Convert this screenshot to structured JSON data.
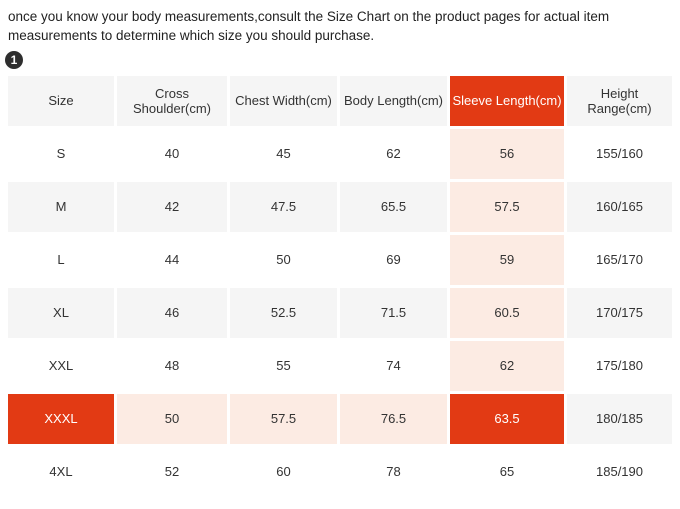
{
  "intro": {
    "text": "once you know your body measurements,consult the Size Chart on the product pages for actual item measurements to determine which size you should purchase.",
    "step_badge": "1"
  },
  "colors": {
    "accent": "#e23a14",
    "accent-light": "#fcebe3",
    "stripe": "#f5f5f5",
    "text-color": "#333333",
    "badge-bg": "#2e2e2e"
  },
  "size_chart": {
    "columns": [
      "Size",
      "Cross Shoulder(cm)",
      "Chest Width(cm)",
      "Body Length(cm)",
      "Sleeve Length(cm)",
      "Height Range(cm)"
    ],
    "highlighted_column": "Sleeve Length(cm)",
    "highlighted_row": "XXXL",
    "rows": [
      [
        "S",
        "40",
        "45",
        "62",
        "56",
        "155/160"
      ],
      [
        "M",
        "42",
        "47.5",
        "65.5",
        "57.5",
        "160/165"
      ],
      [
        "L",
        "44",
        "50",
        "69",
        "59",
        "165/170"
      ],
      [
        "XL",
        "46",
        "52.5",
        "71.5",
        "60.5",
        "170/175"
      ],
      [
        "XXL",
        "48",
        "55",
        "74",
        "62",
        "175/180"
      ],
      [
        "XXXL",
        "50",
        "57.5",
        "76.5",
        "63.5",
        "180/185"
      ],
      [
        "4XL",
        "52",
        "60",
        "78",
        "65",
        "185/190"
      ]
    ]
  }
}
